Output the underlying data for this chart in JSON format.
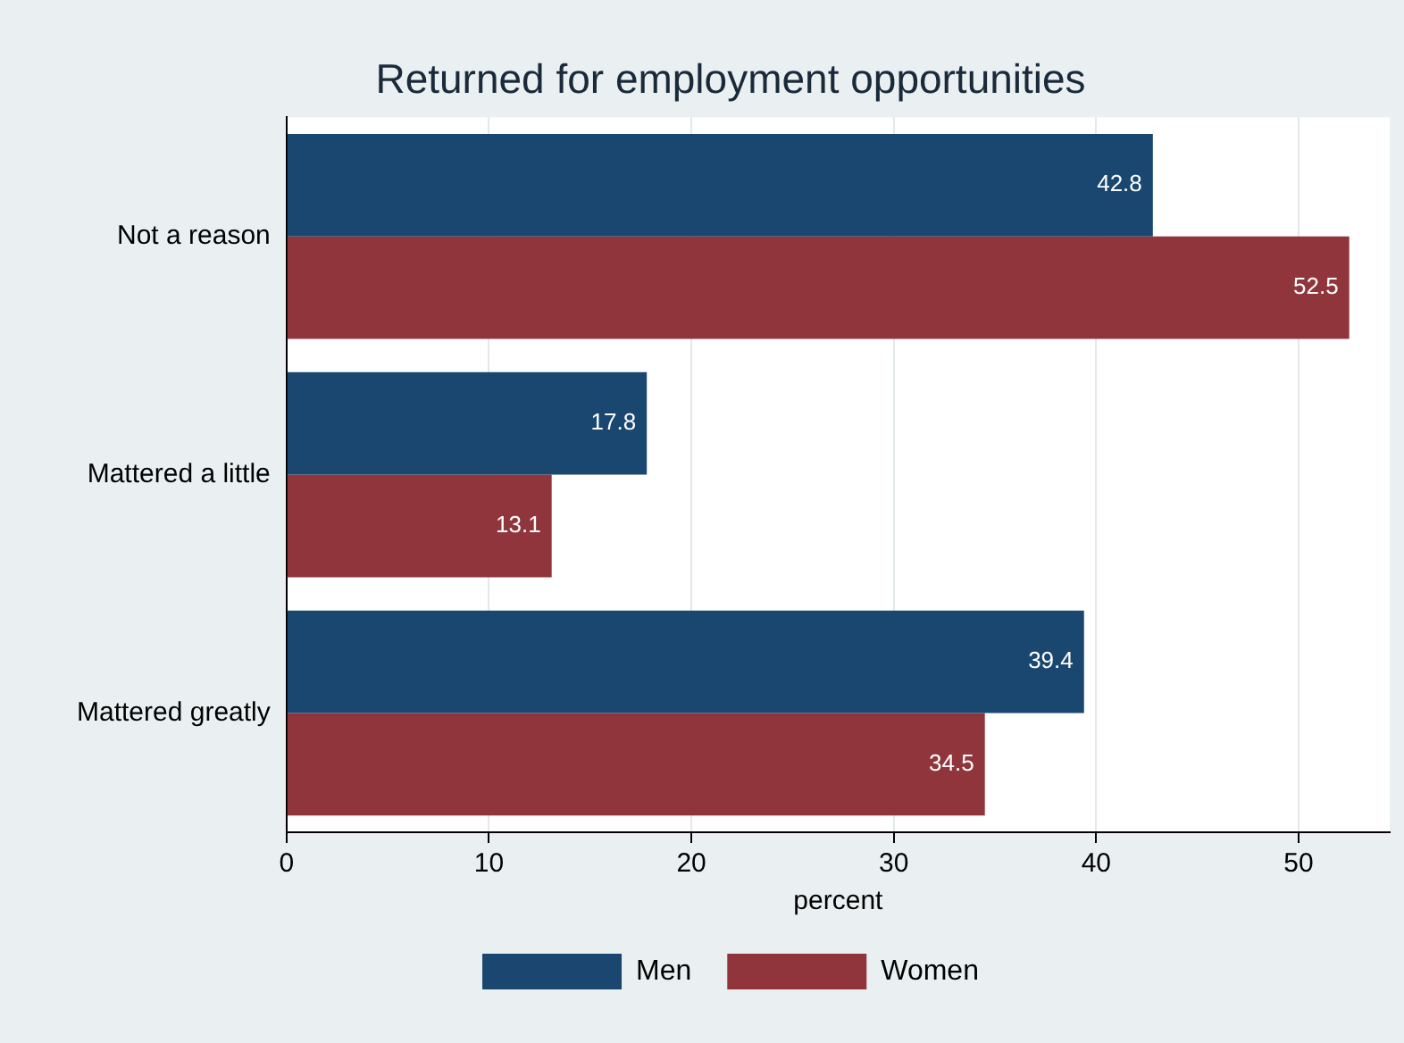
{
  "chart_data": {
    "type": "bar",
    "orientation": "horizontal",
    "title": "Returned for employment opportunities",
    "xlabel": "percent",
    "categories": [
      "Not a reason",
      "Mattered a little",
      "Mattered greatly"
    ],
    "series": [
      {
        "name": "Men",
        "color": "#1a476f",
        "values": [
          42.8,
          17.8,
          39.4
        ]
      },
      {
        "name": "Women",
        "color": "#90353b",
        "values": [
          52.5,
          13.1,
          34.5
        ]
      }
    ],
    "xlim": [
      0,
      54.5
    ],
    "xticks": [
      0,
      10,
      20,
      30,
      40,
      50
    ],
    "grid": "x",
    "legend": "bottom",
    "data_labels": true
  }
}
